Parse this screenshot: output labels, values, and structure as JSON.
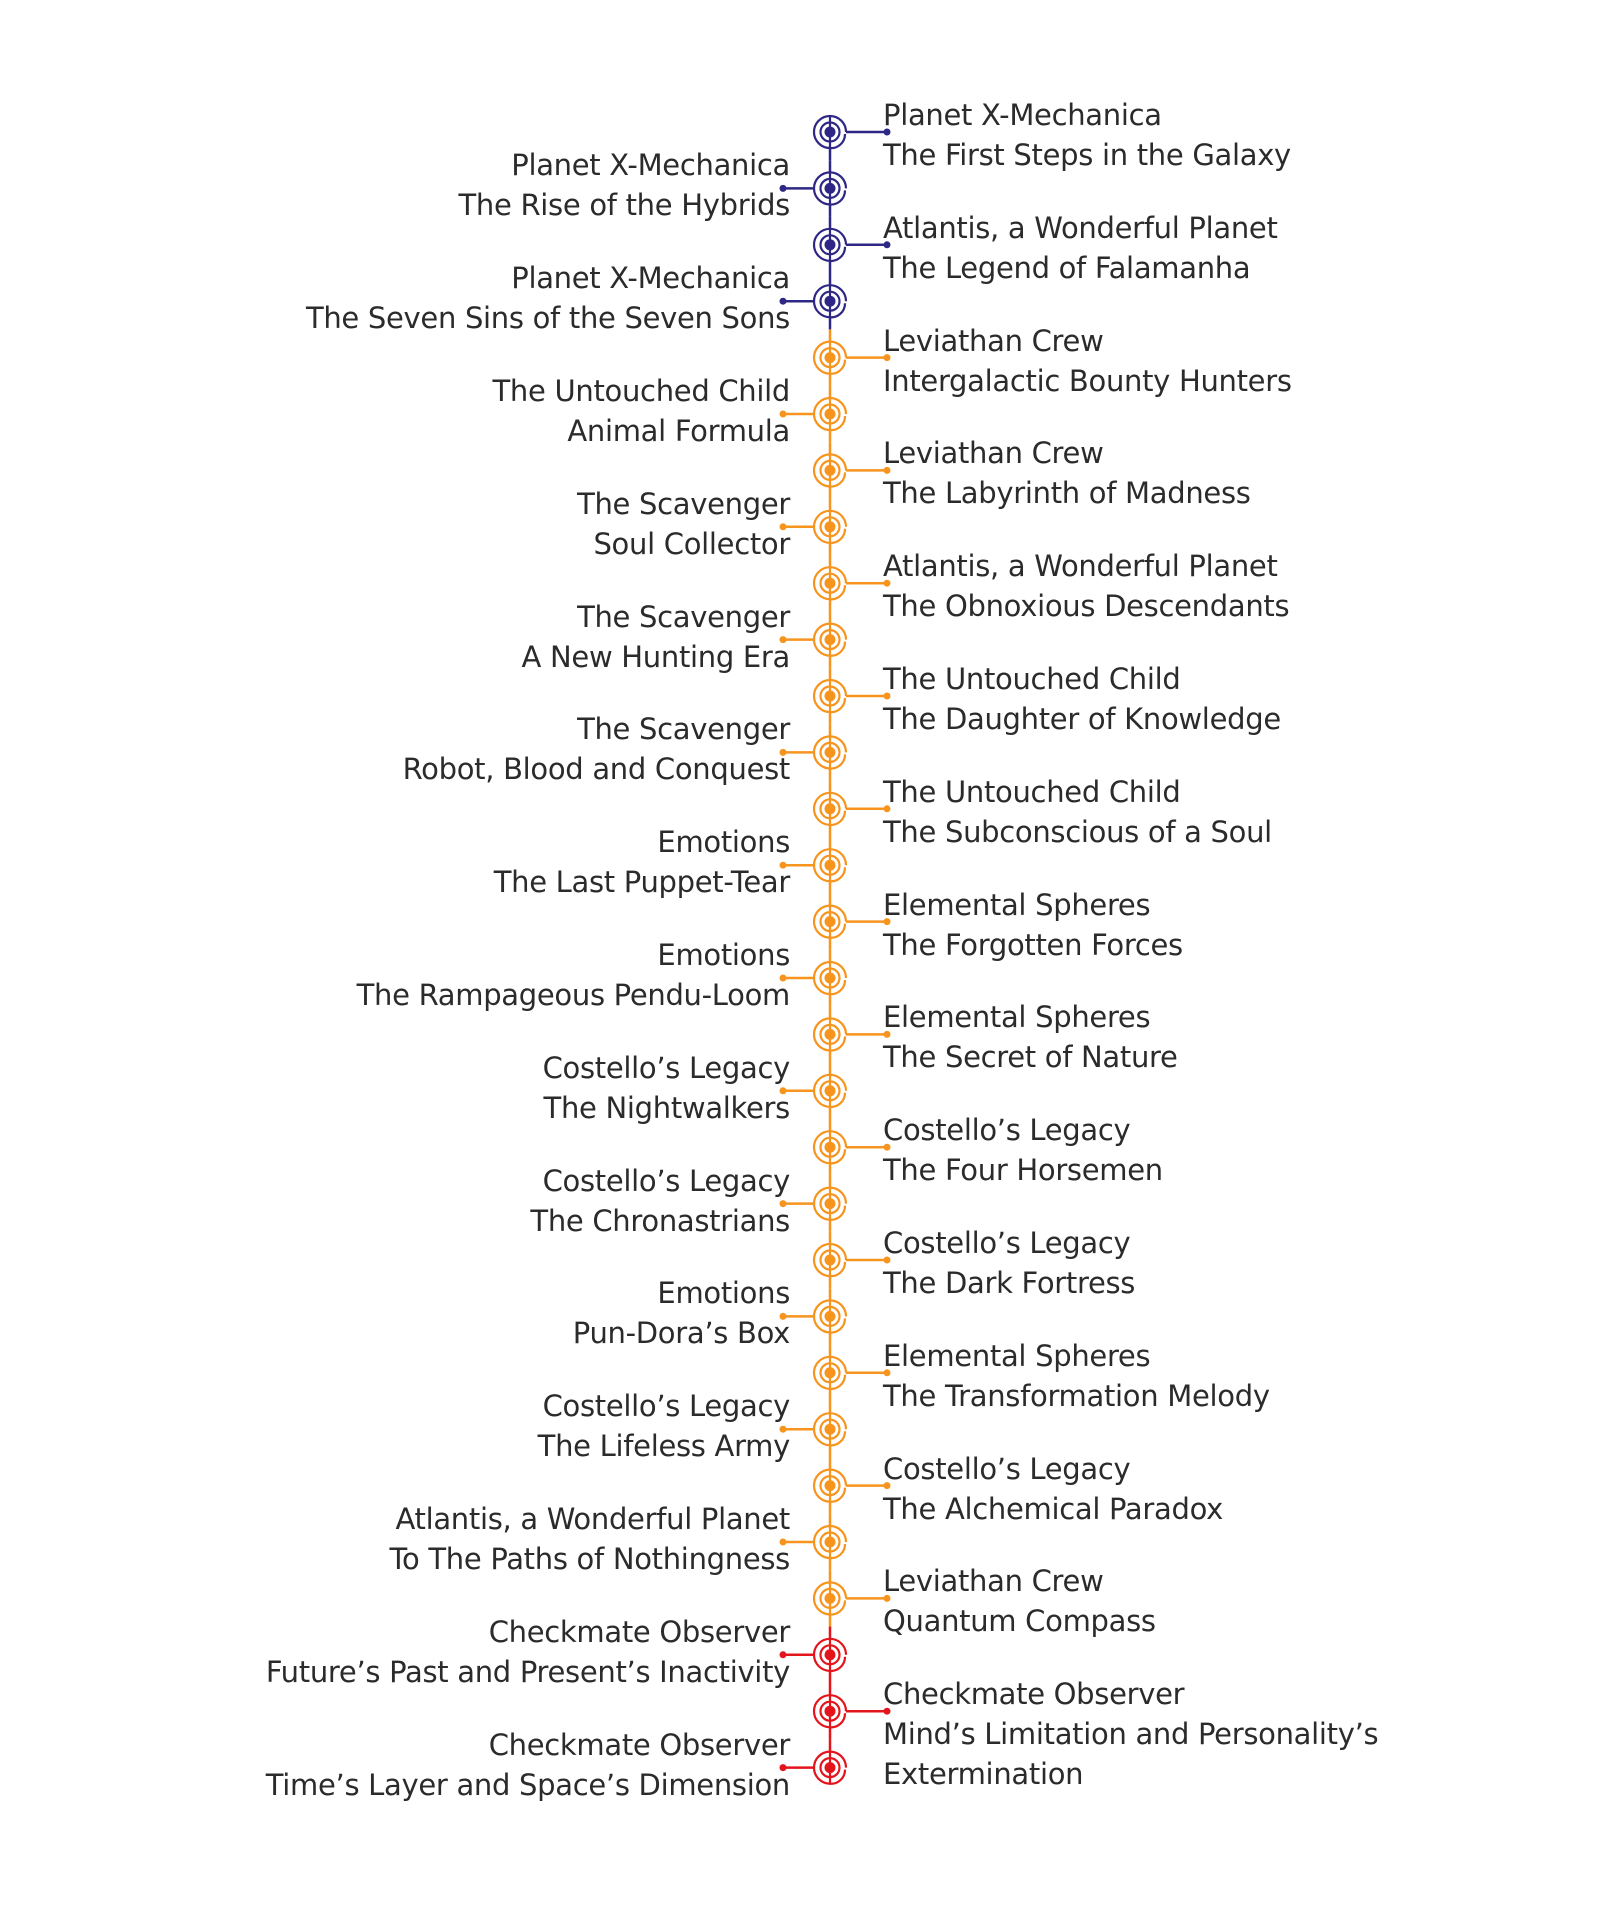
{
  "colors": {
    "era1": "#2e2785",
    "era2": "#f7941d",
    "era3": "#e3141b",
    "text": "#2b2b2b"
  },
  "icons": {
    "node": "concentric-spiral-circle-icon",
    "connector_end": "dot-icon"
  },
  "timeline": [
    {
      "side": "right",
      "era": "era1",
      "lines": [
        "Planet X-Mechanica",
        "The First Steps in the Galaxy"
      ]
    },
    {
      "side": "left",
      "era": "era1",
      "lines": [
        "Planet X-Mechanica",
        "The Rise of the Hybrids"
      ]
    },
    {
      "side": "right",
      "era": "era1",
      "lines": [
        "Atlantis, a Wonderful Planet",
        "The Legend of Falamanha"
      ]
    },
    {
      "side": "left",
      "era": "era1",
      "lines": [
        "Planet X-Mechanica",
        "The Seven Sins of the Seven Sons"
      ]
    },
    {
      "side": "right",
      "era": "era2",
      "lines": [
        "Leviathan Crew",
        "Intergalactic Bounty Hunters"
      ]
    },
    {
      "side": "left",
      "era": "era2",
      "lines": [
        "The Untouched Child",
        "Animal Formula"
      ]
    },
    {
      "side": "right",
      "era": "era2",
      "lines": [
        "Leviathan Crew",
        "The Labyrinth of Madness"
      ]
    },
    {
      "side": "left",
      "era": "era2",
      "lines": [
        "The Scavenger",
        "Soul Collector"
      ]
    },
    {
      "side": "right",
      "era": "era2",
      "lines": [
        "Atlantis, a Wonderful Planet",
        "The Obnoxious Descendants"
      ]
    },
    {
      "side": "left",
      "era": "era2",
      "lines": [
        "The Scavenger",
        "A New Hunting Era"
      ]
    },
    {
      "side": "right",
      "era": "era2",
      "lines": [
        "The Untouched Child",
        "The Daughter of Knowledge"
      ]
    },
    {
      "side": "left",
      "era": "era2",
      "lines": [
        "The Scavenger",
        "Robot, Blood and Conquest"
      ]
    },
    {
      "side": "right",
      "era": "era2",
      "lines": [
        "The Untouched Child",
        "The Subconscious of a Soul"
      ]
    },
    {
      "side": "left",
      "era": "era2",
      "lines": [
        "Emotions",
        "The Last Puppet-Tear"
      ]
    },
    {
      "side": "right",
      "era": "era2",
      "lines": [
        "Elemental Spheres",
        "The Forgotten Forces"
      ]
    },
    {
      "side": "left",
      "era": "era2",
      "lines": [
        "Emotions",
        "The Rampageous Pendu-Loom"
      ]
    },
    {
      "side": "right",
      "era": "era2",
      "lines": [
        "Elemental Spheres",
        "The Secret of Nature"
      ]
    },
    {
      "side": "left",
      "era": "era2",
      "lines": [
        "Costello’s Legacy",
        "The Nightwalkers"
      ]
    },
    {
      "side": "right",
      "era": "era2",
      "lines": [
        "Costello’s Legacy",
        "The Four Horsemen"
      ]
    },
    {
      "side": "left",
      "era": "era2",
      "lines": [
        "Costello’s Legacy",
        "The Chronastrians"
      ]
    },
    {
      "side": "right",
      "era": "era2",
      "lines": [
        "Costello’s Legacy",
        "The Dark Fortress"
      ]
    },
    {
      "side": "left",
      "era": "era2",
      "lines": [
        "Emotions",
        "Pun-Dora’s Box"
      ]
    },
    {
      "side": "right",
      "era": "era2",
      "lines": [
        "Elemental Spheres",
        "The Transformation Melody"
      ]
    },
    {
      "side": "left",
      "era": "era2",
      "lines": [
        "Costello’s Legacy",
        "The Lifeless Army"
      ]
    },
    {
      "side": "right",
      "era": "era2",
      "lines": [
        "Costello’s Legacy",
        "The Alchemical Paradox"
      ]
    },
    {
      "side": "left",
      "era": "era2",
      "lines": [
        "Atlantis, a Wonderful Planet",
        "To The Paths of Nothingness"
      ]
    },
    {
      "side": "right",
      "era": "era2",
      "lines": [
        "Leviathan Crew",
        "Quantum Compass"
      ]
    },
    {
      "side": "left",
      "era": "era3",
      "lines": [
        "Checkmate Observer",
        "Future’s Past and Present’s Inactivity"
      ]
    },
    {
      "side": "right",
      "era": "era3",
      "lines": [
        "Checkmate Observer",
        "Mind’s Limitation and Personality’s",
        "Extermination"
      ]
    },
    {
      "side": "left",
      "era": "era3",
      "lines": [
        "Checkmate Observer",
        "Time’s Layer and Space’s Dimension"
      ]
    }
  ]
}
